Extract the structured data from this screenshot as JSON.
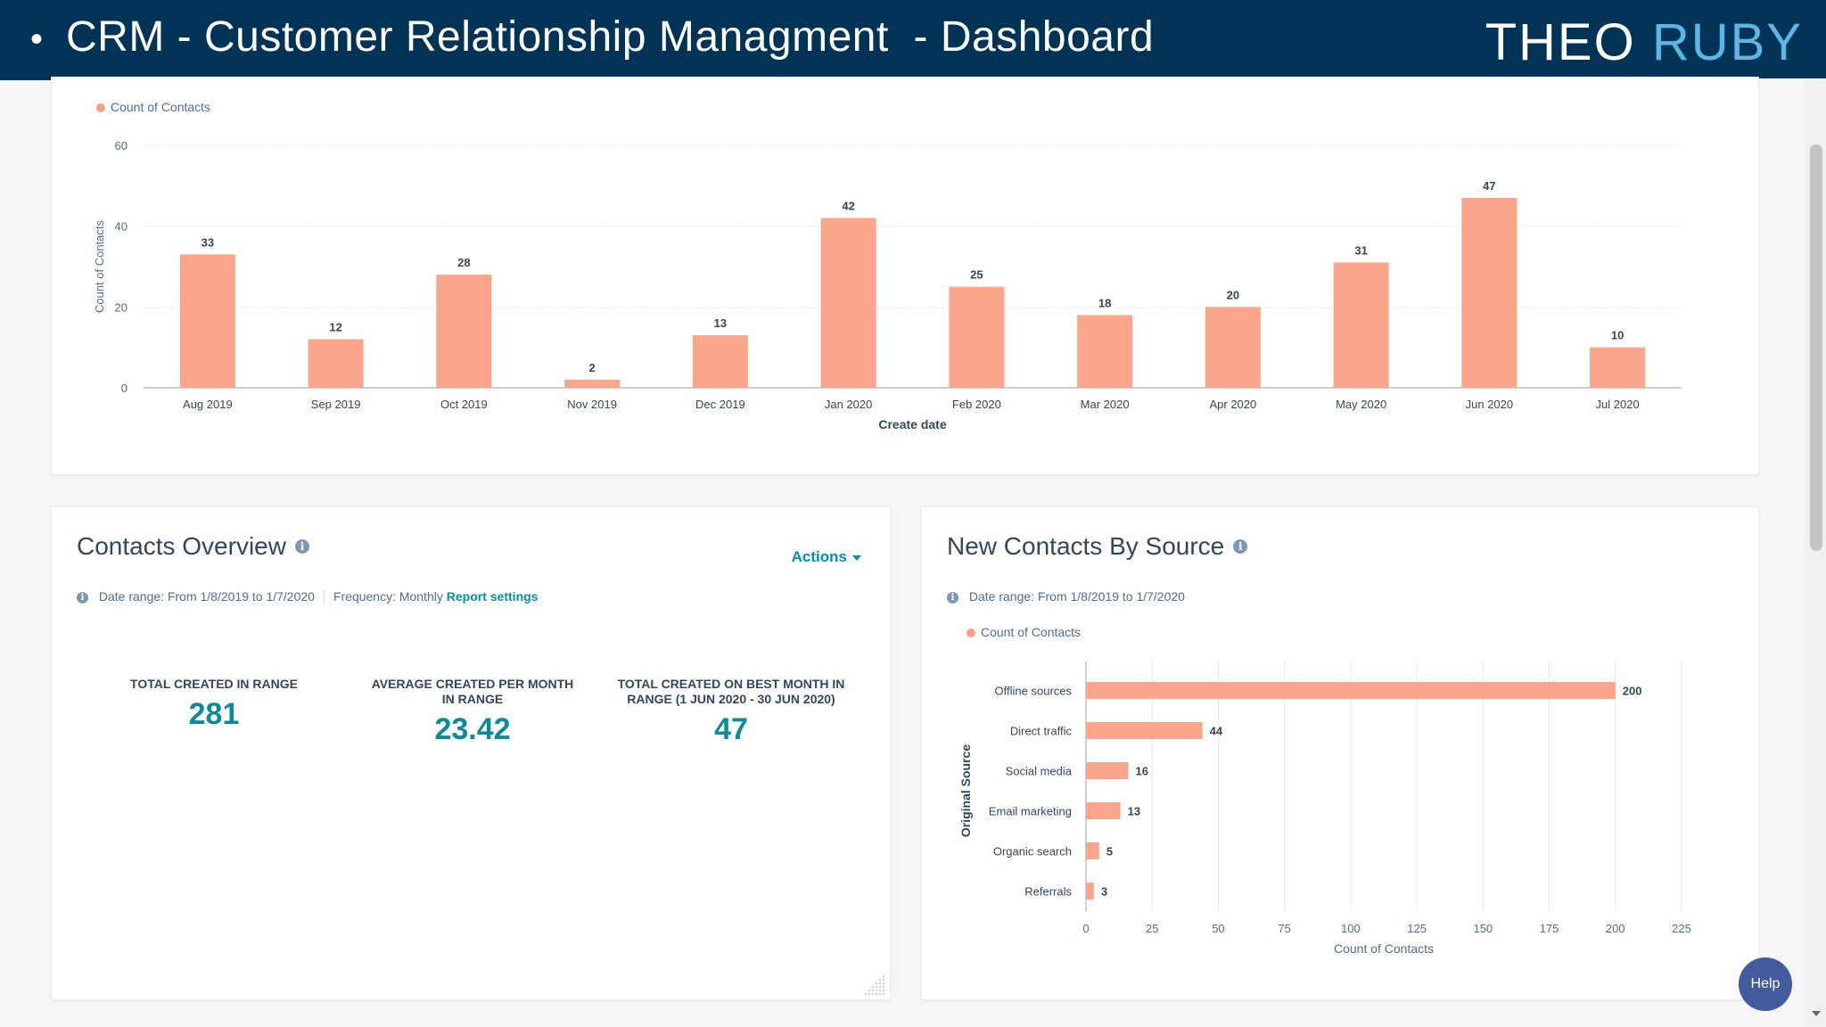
{
  "banner": {
    "bullet": "•",
    "title": "CRM - Customer Relationship Managment  - Dashboard",
    "brand_part1": "THEO",
    "brand_part2": "RUBY"
  },
  "top_chart": {
    "legend": "Count of Contacts",
    "chart_data": {
      "type": "bar",
      "categories": [
        "Aug 2019",
        "Sep 2019",
        "Oct 2019",
        "Nov 2019",
        "Dec 2019",
        "Jan 2020",
        "Feb 2020",
        "Mar 2020",
        "Apr 2020",
        "May 2020",
        "Jun 2020",
        "Jul 2020"
      ],
      "values": [
        33,
        12,
        28,
        2,
        13,
        42,
        25,
        18,
        20,
        31,
        47,
        10
      ],
      "xlabel": "Create date",
      "ylabel": "Count of Contacts",
      "ylim": [
        0,
        60
      ],
      "yticks": [
        0,
        20,
        40,
        60
      ],
      "series": [
        {
          "name": "Count of Contacts",
          "values": [
            33,
            12,
            28,
            2,
            13,
            42,
            25,
            18,
            20,
            31,
            47,
            10
          ]
        }
      ],
      "grid": true,
      "legend_position": "top-left",
      "bar_color": "#fba58a"
    }
  },
  "contacts_overview": {
    "title": "Contacts Overview",
    "info_glyph": "i",
    "actions_label": "Actions",
    "date_range": "Date range: From 1/8/2019 to 1/7/2020",
    "frequency": "Frequency: Monthly",
    "report_settings": "Report settings",
    "kpis": [
      {
        "label": "TOTAL CREATED IN RANGE",
        "value": "281"
      },
      {
        "label": "AVERAGE CREATED PER MONTH IN RANGE",
        "value": "23.42"
      },
      {
        "label": "TOTAL CREATED ON BEST MONTH IN RANGE (1 JUN 2020 - 30 JUN 2020)",
        "value": "47"
      }
    ]
  },
  "contacts_by_source": {
    "title": "New Contacts By Source",
    "info_glyph": "i",
    "date_range": "Date range: From 1/8/2019 to 1/7/2020",
    "legend": "Count of Contacts",
    "chart_data": {
      "type": "bar",
      "orientation": "horizontal",
      "categories": [
        "Offline sources",
        "Direct traffic",
        "Social media",
        "Email marketing",
        "Organic search",
        "Referrals"
      ],
      "values": [
        200,
        44,
        16,
        13,
        5,
        3
      ],
      "xlabel": "Count of Contacts",
      "ylabel": "Original Source",
      "xlim": [
        0,
        225
      ],
      "xticks": [
        0,
        25,
        50,
        75,
        100,
        125,
        150,
        175,
        200,
        225
      ],
      "series": [
        {
          "name": "Count of Contacts",
          "values": [
            200,
            44,
            16,
            13,
            5,
            3
          ]
        }
      ],
      "grid": true,
      "legend_position": "top-left",
      "bar_color": "#fba58a"
    }
  },
  "help": {
    "label": "Help"
  },
  "colors": {
    "banner": "#003356",
    "accent": "#0091ae",
    "kpi": "#0b8a9c",
    "bar": "#fba58a",
    "brand_blue": "#5bb8e6"
  }
}
